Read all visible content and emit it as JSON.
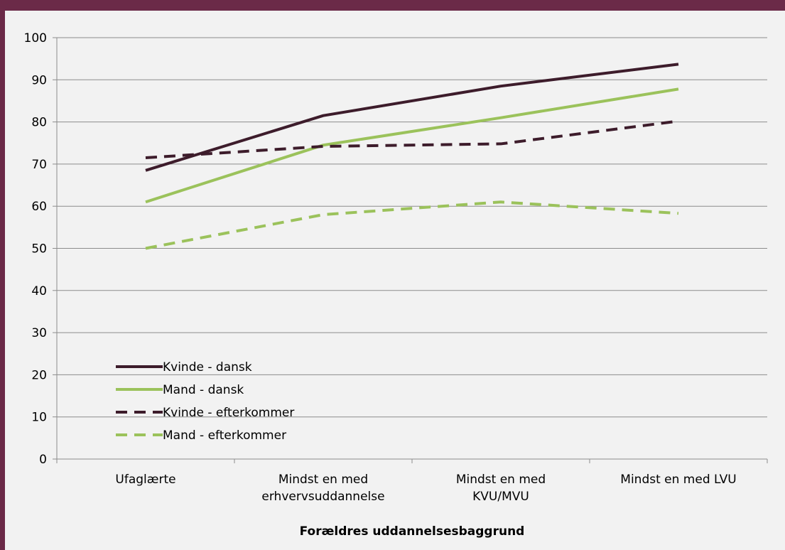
{
  "chart_data": {
    "type": "line",
    "categories": [
      [
        "Ufaglærte"
      ],
      [
        "Mindst en med",
        "erhvervsuddannelse"
      ],
      [
        "Mindst en med",
        "KVU/MVU"
      ],
      [
        "Mindst en med LVU"
      ]
    ],
    "series": [
      {
        "name": "Kvinde - dansk",
        "values": [
          68.5,
          81.5,
          88.5,
          93.7
        ],
        "color": "#3D1C2B",
        "dashed": false
      },
      {
        "name": "Mand - dansk",
        "values": [
          61.0,
          74.5,
          81.0,
          87.8
        ],
        "color": "#9BC25B",
        "dashed": false
      },
      {
        "name": "Kvinde - efterkommer",
        "values": [
          71.5,
          74.2,
          74.8,
          80.2
        ],
        "color": "#3D1C2B",
        "dashed": true
      },
      {
        "name": "Mand - efterkommer",
        "values": [
          50.0,
          58.0,
          61.0,
          58.3
        ],
        "color": "#9BC25B",
        "dashed": true
      }
    ],
    "xlabel": "Forældres uddannelsesbaggrund",
    "ylabel": "",
    "ylim": [
      0,
      100
    ],
    "yticks": [
      0,
      10,
      20,
      30,
      40,
      50,
      60,
      70,
      80,
      90,
      100
    ],
    "grid": true,
    "legend_position": "bottom-left"
  },
  "colors": {
    "frame": "#6B2A48",
    "background": "#F2F2F2",
    "gridline": "#8C8C8C"
  }
}
